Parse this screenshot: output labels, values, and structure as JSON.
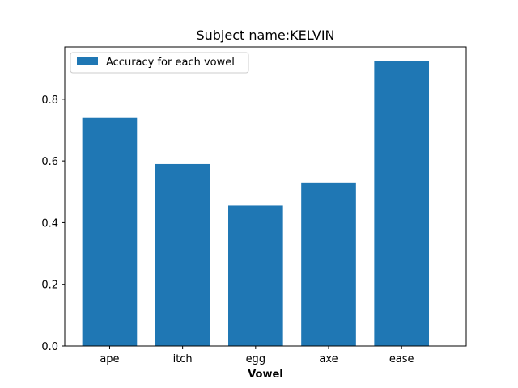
{
  "chart_data": {
    "type": "bar",
    "title": "Subject name:KELVIN",
    "xlabel": "Vowel",
    "ylabel": "",
    "categories": [
      "ape",
      "itch",
      "egg",
      "axe",
      "ease"
    ],
    "series": [
      {
        "name": "Accuracy for each vowel",
        "values": [
          0.74,
          0.59,
          0.455,
          0.53,
          0.925
        ]
      }
    ],
    "ylim": [
      0,
      0.97
    ],
    "yticks": [
      "0.0",
      "0.2",
      "0.4",
      "0.6",
      "0.8"
    ],
    "grid": false,
    "legend_position": "upper-left",
    "bar_color": "#1f77b4"
  }
}
